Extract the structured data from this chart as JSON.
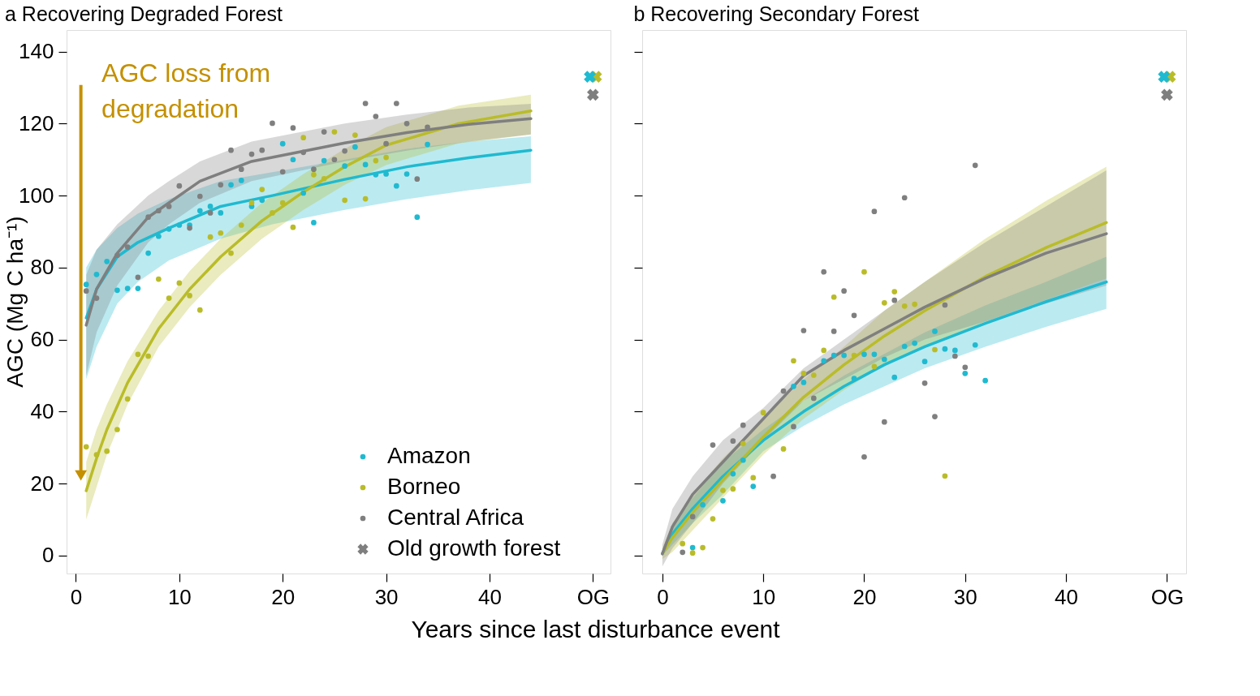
{
  "chart_data": [
    {
      "type": "scatter",
      "title": "a Recovering Degraded Forest",
      "xlabel": "Years since last disturbance event",
      "ylabel": "AGC (Mg C ha⁻¹)",
      "xlim": [
        -0.9,
        51.7
      ],
      "xticks": [
        0,
        10,
        20,
        30,
        40,
        {
          "value": 50,
          "label": "OG"
        }
      ],
      "ylim": [
        -5,
        146
      ],
      "yticks": [
        0,
        20,
        40,
        60,
        80,
        100,
        120,
        140
      ],
      "grid": false,
      "legend": "bottom right",
      "line_style": "solid",
      "annotations": [
        "AGC loss from degradation"
      ],
      "series": [
        {
          "type": "line",
          "color": "#1fbad0",
          "x": [
            1,
            2,
            4,
            6,
            9,
            14,
            19,
            26,
            32,
            38,
            44
          ],
          "values": [
            66,
            74,
            83,
            87,
            91,
            97,
            100,
            104.5,
            108,
            110.5,
            112.6
          ],
          "lower": [
            49,
            58,
            70,
            76,
            82,
            88,
            92,
            96,
            99,
            101.5,
            103.5
          ],
          "upper": [
            80,
            85,
            91,
            95,
            99,
            104,
            106.5,
            110,
            113,
            115,
            116.5
          ]
        },
        {
          "type": "line",
          "color": "#b9bc28",
          "x": [
            1,
            2,
            3,
            5,
            8,
            11,
            14,
            18,
            22,
            26,
            30,
            37,
            44
          ],
          "values": [
            18,
            27,
            35,
            48,
            63,
            74,
            83,
            93,
            101,
            108,
            114,
            120,
            123.5
          ],
          "lower": [
            10,
            19,
            28,
            42,
            58,
            69,
            78,
            88,
            96,
            103,
            108.5,
            114.5,
            117
          ],
          "upper": [
            26,
            35,
            42,
            54,
            68,
            79,
            88,
            98,
            106,
            113,
            119,
            125,
            128
          ]
        },
        {
          "type": "line",
          "color": "#7f7f7f",
          "x": [
            1,
            2,
            4,
            7,
            9,
            12,
            17,
            26,
            32,
            38,
            44
          ],
          "values": [
            64,
            74,
            84,
            94,
            98,
            104,
            109.5,
            114.6,
            117.5,
            119.8,
            121.4
          ],
          "lower": [
            50,
            62,
            75,
            87,
            92,
            98,
            104,
            109.5,
            112.5,
            115,
            117
          ],
          "upper": [
            78,
            85,
            92,
            100,
            104,
            109.5,
            115,
            120,
            122.5,
            124.5,
            125.5
          ]
        },
        {
          "name": "Amazon",
          "marker": "circle",
          "color": "#1fbad0",
          "x": [
            1,
            2,
            3,
            4,
            5,
            6,
            7,
            8,
            9,
            10,
            11,
            12,
            13,
            14,
            15,
            16,
            17,
            18,
            20,
            21,
            22,
            23,
            24,
            26,
            27,
            28,
            29,
            30,
            31,
            32,
            33,
            34
          ],
          "values": [
            75.3,
            78.1,
            81.7,
            73.7,
            74.2,
            74.2,
            84,
            88.7,
            90.7,
            91.8,
            91.8,
            95.8,
            97,
            95.2,
            103,
            104.2,
            97,
            98.7,
            114.4,
            110,
            100.7,
            92.5,
            109.7,
            108.2,
            113.5,
            108.6,
            105.8,
            106,
            102.7,
            106,
            94,
            114.2
          ]
        },
        {
          "name": "Borneo",
          "marker": "circle",
          "color": "#b9bc28",
          "x": [
            1,
            2,
            3,
            4,
            5,
            6,
            7,
            8,
            9,
            10,
            11,
            12,
            13,
            14,
            15,
            16,
            17,
            18,
            19,
            20,
            21,
            22,
            23,
            24,
            25,
            26,
            27,
            28,
            29,
            30
          ],
          "values": [
            30.2,
            28,
            29,
            35,
            43.5,
            55.9,
            55.4,
            76.8,
            71.5,
            75.7,
            72.2,
            68.2,
            88.5,
            89.6,
            84,
            91.8,
            98,
            101.7,
            95.2,
            98,
            91.2,
            116.1,
            105.8,
            104.7,
            117.7,
            98.7,
            116.8,
            99.1,
            109.7,
            110.6
          ]
        },
        {
          "name": "Central Africa",
          "marker": "circle",
          "color": "#7f7f7f",
          "x": [
            1,
            2,
            4,
            5,
            6,
            7,
            8,
            9,
            10,
            11,
            12,
            13,
            14,
            15,
            16,
            17,
            18,
            19,
            20,
            21,
            22,
            23,
            24,
            25,
            26,
            28,
            29,
            30,
            31,
            32,
            33,
            34
          ],
          "values": [
            73.5,
            71.5,
            83.4,
            85.7,
            77.3,
            94,
            95.8,
            97,
            102.7,
            91,
            99.8,
            95.2,
            103,
            112.6,
            107.3,
            111.5,
            112.6,
            120.1,
            106.6,
            118.8,
            112,
            107.3,
            117.7,
            110,
            112.4,
            125.6,
            122,
            114.4,
            125.6,
            120,
            104.6,
            119
          ]
        },
        {
          "name": "Old growth forest",
          "marker": "cross",
          "x": [
            50.3,
            49.7,
            50
          ],
          "values": [
            133,
            133,
            128
          ],
          "colors": [
            "#b9bc28",
            "#1fbad0",
            "#7f7f7f"
          ]
        }
      ]
    },
    {
      "type": "scatter",
      "title": "b Recovering Secondary Forest",
      "xlim": [
        -2,
        51.9
      ],
      "xticks": [
        0,
        10,
        20,
        30,
        40,
        {
          "value": 50,
          "label": "OG"
        }
      ],
      "ylim": [
        -5,
        146
      ],
      "yticks": [
        0,
        20,
        40,
        60,
        80,
        100,
        120,
        140
      ],
      "tick_labels": "x",
      "grid": false,
      "line_style": "solid",
      "series": [
        {
          "type": "line",
          "color": "#1fbad0",
          "x": [
            0,
            1,
            3,
            6,
            10,
            14,
            18,
            22,
            26,
            32,
            38,
            44
          ],
          "values": [
            0.5,
            6,
            13,
            22,
            32,
            40,
            47,
            53,
            58,
            64.5,
            70.5,
            76
          ],
          "lower": [
            0,
            3,
            9,
            17,
            29,
            36,
            42,
            47,
            52,
            58,
            63.5,
            68.5
          ],
          "upper": [
            1,
            9,
            16,
            26,
            35,
            43,
            50,
            56,
            62,
            69.5,
            76,
            83
          ]
        },
        {
          "type": "line",
          "color": "#b9bc28",
          "x": [
            0,
            1,
            3,
            6,
            10,
            14,
            18,
            22,
            26,
            32,
            38,
            44
          ],
          "values": [
            0.5,
            5,
            12,
            21,
            33,
            44,
            53,
            61,
            68,
            77.5,
            85.5,
            92.5
          ],
          "lower": [
            -1,
            1,
            7,
            16,
            28,
            38,
            46,
            53,
            58,
            65,
            71,
            77
          ],
          "upper": [
            2,
            9,
            17,
            27,
            38,
            49,
            58,
            68,
            76,
            88,
            98.5,
            108
          ]
        },
        {
          "type": "line",
          "color": "#7f7f7f",
          "x": [
            0,
            1,
            3,
            6,
            10,
            14,
            18,
            22,
            26,
            32,
            38,
            44
          ],
          "values": [
            0.5,
            8,
            17,
            26,
            38,
            50,
            57,
            63,
            69,
            77,
            84,
            89.4
          ],
          "lower": [
            -3,
            2,
            9,
            20,
            32,
            43,
            49,
            55,
            60,
            65,
            70,
            75
          ],
          "upper": [
            3,
            13,
            22,
            32,
            41,
            52,
            60,
            68,
            76,
            87,
            97,
            107
          ]
        },
        {
          "marker": "circle",
          "color": "#1fbad0",
          "x": [
            3,
            4,
            6,
            7,
            8,
            9,
            13,
            14,
            16,
            17,
            18,
            19,
            20,
            21,
            22,
            23,
            24,
            25,
            26,
            27,
            28,
            29,
            30,
            31,
            32
          ],
          "values": [
            2.2,
            14.1,
            15.2,
            22.7,
            26.5,
            19.2,
            47,
            48.1,
            54.1,
            55.6,
            55.6,
            49.2,
            55.9,
            55.9,
            54.5,
            49.5,
            58.1,
            59,
            53.9,
            62.3,
            57.4,
            57,
            50.6,
            58.5,
            48.6
          ]
        },
        {
          "marker": "circle",
          "color": "#b9bc28",
          "x": [
            2,
            3,
            4,
            5,
            6,
            7,
            8,
            9,
            10,
            12,
            13,
            14,
            15,
            16,
            17,
            19,
            20,
            21,
            22,
            23,
            24,
            25,
            27,
            28
          ],
          "values": [
            3.3,
            0.7,
            2.2,
            10.2,
            18.1,
            18.5,
            31.1,
            21.6,
            39.7,
            29.6,
            54.1,
            50.6,
            50.1,
            57,
            71.8,
            55.6,
            78.8,
            52.5,
            70.2,
            73.3,
            69.3,
            69.8,
            57.2,
            22.1
          ]
        },
        {
          "marker": "circle",
          "color": "#7f7f7f",
          "x": [
            2,
            3,
            5,
            7,
            8,
            11,
            12,
            13,
            14,
            15,
            16,
            17,
            18,
            19,
            20,
            21,
            22,
            23,
            24,
            26,
            27,
            28,
            29,
            30,
            31
          ],
          "values": [
            0.9,
            10.8,
            30.7,
            31.8,
            36.2,
            22,
            45.7,
            35.8,
            62.5,
            43.7,
            78.8,
            62.3,
            73.5,
            66.7,
            27.4,
            95.6,
            37.1,
            70.9,
            99.4,
            47.9,
            38.6,
            69.6,
            55.4,
            52.3,
            108.4
          ]
        },
        {
          "marker": "cross",
          "x": [
            50.3,
            49.7,
            50
          ],
          "values": [
            133,
            133,
            128
          ],
          "colors": [
            "#b9bc28",
            "#1fbad0",
            "#7f7f7f"
          ]
        }
      ]
    }
  ]
}
